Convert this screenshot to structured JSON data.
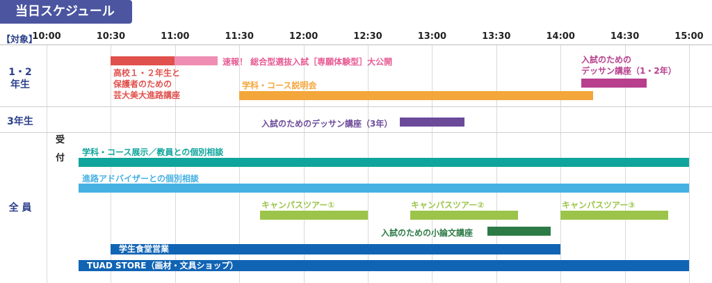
{
  "header": {
    "title": "当日スケジュール",
    "audience_label": "【対象】"
  },
  "timeline": {
    "ticks": [
      "10:00",
      "10:30",
      "11:00",
      "11:30",
      "12:00",
      "12:30",
      "13:00",
      "13:30",
      "14:00",
      "14:30",
      "15:00"
    ]
  },
  "rows": {
    "grade12": [
      "1・2",
      "年生"
    ],
    "grade3": "3年生",
    "all": "全 員",
    "reception": [
      "受",
      "付"
    ]
  },
  "events": {
    "geidai_course": [
      "高校１・２年生と",
      "保護者のための",
      "芸大美大進路講座"
    ],
    "breaking_news": "速報！ 総合型選抜入試［専願体験型］大公開",
    "dessin_12_label": [
      "入試のための",
      "デッサン講座（1・2年）"
    ],
    "course_info": "学科・コース説明会",
    "dessin_3": "入試のためのデッサン講座（3年）",
    "exhibition": "学科・コース展示／教員との個別相談",
    "advisor": "進路アドバイザーとの個別相談",
    "tour1": "キャンパスツアー①",
    "tour2": "キャンパスツアー②",
    "tour3": "キャンパスツアー③",
    "essay": "入試のための小論文講座",
    "cafeteria": "学生食堂営業",
    "store": "TUAD STORE（画材・文具ショップ）"
  },
  "colors": {
    "red": "#e0504c",
    "pink": "#ef8eb2",
    "orange": "#f3a63a",
    "magenta": "#b83f8e",
    "purple": "#6c4a9a",
    "teal": "#0fa59c",
    "sky": "#45b1e3",
    "lime": "#9cc44a",
    "green": "#2c7a45",
    "navy": "#1164b4"
  }
}
